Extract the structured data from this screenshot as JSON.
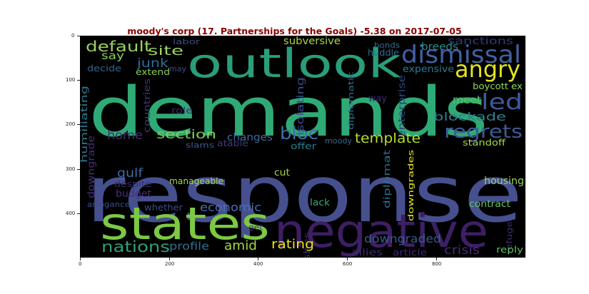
{
  "title": "moody's corp (17. Partnerships for the Goals) -5.38 on 2017-07-05",
  "x_ticks": [
    "0",
    "200",
    "400",
    "600",
    "800"
  ],
  "y_ticks": [
    "0",
    "100",
    "200",
    "300",
    "400"
  ],
  "words": [
    {
      "text": "response",
      "color": "#46508f"
    },
    {
      "text": "demands",
      "color": "#2faa76"
    },
    {
      "text": "outlook",
      "color": "#2a9d7a"
    },
    {
      "text": "negative",
      "color": "#3d1f64"
    },
    {
      "text": "states",
      "color": "#7cc943"
    },
    {
      "text": "dismissal",
      "color": "#4160a4"
    },
    {
      "text": "angry",
      "color": "#e3e31f"
    },
    {
      "text": "led",
      "color": "#3d5b9b"
    },
    {
      "text": "regrets",
      "color": "#3e5b96"
    },
    {
      "text": "default",
      "color": "#9bd15e"
    },
    {
      "text": "site",
      "color": "#9bd15e"
    },
    {
      "text": "junk",
      "color": "#2d6e9a"
    },
    {
      "text": "say",
      "color": "#8ecc5a"
    },
    {
      "text": "may",
      "color": "#3f4c8a"
    },
    {
      "text": "labor",
      "color": "#3a4e86"
    },
    {
      "text": "subversive",
      "color": "#a8d640"
    },
    {
      "text": "sanctions",
      "color": "#2f3a7a"
    },
    {
      "text": "bonds",
      "color": "#2d6e93"
    },
    {
      "text": "breeds",
      "color": "#2a8f8e"
    },
    {
      "text": "huddle",
      "color": "#2d6e93"
    },
    {
      "text": "expensive",
      "color": "#2d7a8f"
    },
    {
      "text": "boycott",
      "color": "#8ed65c"
    },
    {
      "text": "ex",
      "color": "#8ed65c"
    },
    {
      "text": "decide",
      "color": "#31658f"
    },
    {
      "text": "extend",
      "color": "#8ecc5a"
    },
    {
      "text": "countries",
      "color": "#3c3a75"
    },
    {
      "text": "humiliating",
      "color": "#2d7a8f"
    },
    {
      "text": "isolating",
      "color": "#3d4c8c"
    },
    {
      "text": "diplomatic",
      "color": "#2e6f8e"
    },
    {
      "text": "way",
      "color": "#3d2b6e"
    },
    {
      "text": "enterprise",
      "color": "#2a4a7c"
    },
    {
      "text": "meet",
      "color": "#5cbf62"
    },
    {
      "text": "blockade",
      "color": "#2e7f8e"
    },
    {
      "text": "role",
      "color": "#3d2b6e"
    },
    {
      "text": "home",
      "color": "#443070"
    },
    {
      "text": "section",
      "color": "#7fd05d"
    },
    {
      "text": "changes",
      "color": "#3f6aa0"
    },
    {
      "text": "bloc",
      "color": "#3e6fa5"
    },
    {
      "text": "template",
      "color": "#b5de2b"
    },
    {
      "text": "slams",
      "color": "#3a5a8f"
    },
    {
      "text": "atable",
      "color": "#3d3b77"
    },
    {
      "text": "offer",
      "color": "#2a7f8e"
    },
    {
      "text": "moody",
      "color": "#3a6791"
    },
    {
      "text": "standoff",
      "color": "#a6d648"
    },
    {
      "text": "downgrade",
      "color": "#472d7b"
    },
    {
      "text": "gulf",
      "color": "#3f6aa0"
    },
    {
      "text": "despite",
      "color": "#3c2d6c"
    },
    {
      "text": "budget",
      "color": "#472d7b"
    },
    {
      "text": "manageable",
      "color": "#a6d648"
    },
    {
      "text": "cut",
      "color": "#a6d648"
    },
    {
      "text": "diplomat",
      "color": "#2d6e93"
    },
    {
      "text": "downgrades",
      "color": "#e3e31f"
    },
    {
      "text": "housing",
      "color": "#9bd15e"
    },
    {
      "text": "arrogance",
      "color": "#3a4e86"
    },
    {
      "text": "whether",
      "color": "#3f4c8a"
    },
    {
      "text": "economic",
      "color": "#4a6fb0"
    },
    {
      "text": "lack",
      "color": "#3ea57a"
    },
    {
      "text": "punishes",
      "color": "#3d2b6e"
    },
    {
      "text": "contract",
      "color": "#66c366"
    },
    {
      "text": "refuge",
      "color": "#3d2b6e"
    },
    {
      "text": "get",
      "color": "#3d2b6e"
    },
    {
      "text": "nations",
      "color": "#2ea07a"
    },
    {
      "text": "profile",
      "color": "#2e6f8e"
    },
    {
      "text": "amid",
      "color": "#a8d640"
    },
    {
      "text": "rating",
      "color": "#e8e419"
    },
    {
      "text": "downgraded",
      "color": "#3a5a8f"
    },
    {
      "text": "crisis",
      "color": "#4a2b77"
    },
    {
      "text": "allies",
      "color": "#3d2b6e"
    },
    {
      "text": "article",
      "color": "#3d2b6e"
    },
    {
      "text": "reply",
      "color": "#5cbf62"
    }
  ]
}
